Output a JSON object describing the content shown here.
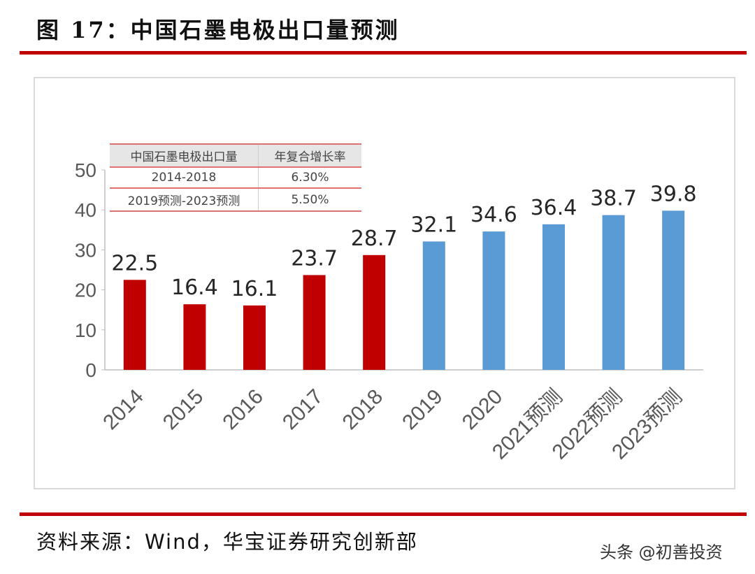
{
  "title": "图 17：中国石墨电极出口量预测",
  "source": "资料来源：Wind，华宝证券研究创新部",
  "watermark": "头条 @初善投资",
  "cagr_table": {
    "headers": [
      "中国石墨电极出口量",
      "年复合增长率"
    ],
    "rows": [
      [
        "2014-2018",
        "6.30%"
      ],
      [
        "2019预测-2023预测",
        "5.50%"
      ]
    ]
  },
  "chart_data": {
    "type": "bar",
    "categories": [
      "2014",
      "2015",
      "2016",
      "2017",
      "2018",
      "2019",
      "2020",
      "2021预测",
      "2022预测",
      "2023预测"
    ],
    "values": [
      22.5,
      16.4,
      16.1,
      23.7,
      28.7,
      32.1,
      34.6,
      36.4,
      38.7,
      39.8
    ],
    "labels": [
      "22.5",
      "16.4",
      "16.1",
      "23.7",
      "28.7",
      "32.1",
      "34.6",
      "36.4",
      "38.7",
      "39.8"
    ],
    "bar_colors": [
      "#C00000",
      "#C00000",
      "#C00000",
      "#C00000",
      "#C00000",
      "#5B9BD5",
      "#5B9BD5",
      "#5B9BD5",
      "#5B9BD5",
      "#5B9BD5"
    ],
    "ylim": [
      0,
      50
    ],
    "yticks": [
      "0",
      "10",
      "20",
      "30",
      "40",
      "50"
    ],
    "grid": false
  }
}
